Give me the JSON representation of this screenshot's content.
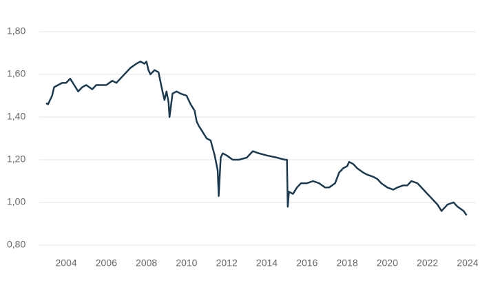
{
  "chart_data": {
    "type": "line",
    "x": [
      2003.0,
      2003.1,
      2003.3,
      2003.4,
      2003.6,
      2003.8,
      2004.0,
      2004.2,
      2004.4,
      2004.6,
      2004.8,
      2005.0,
      2005.3,
      2005.5,
      2005.8,
      2006.0,
      2006.3,
      2006.5,
      2006.7,
      2007.0,
      2007.2,
      2007.5,
      2007.7,
      2007.9,
      2008.0,
      2008.1,
      2008.2,
      2008.4,
      2008.6,
      2008.8,
      2008.9,
      2009.0,
      2009.1,
      2009.15,
      2009.3,
      2009.5,
      2009.7,
      2010.0,
      2010.2,
      2010.4,
      2010.5,
      2010.6,
      2010.8,
      2011.0,
      2011.2,
      2011.4,
      2011.55,
      2011.6,
      2011.65,
      2011.7,
      2011.8,
      2012.0,
      2012.3,
      2012.6,
      2013.0,
      2013.3,
      2013.6,
      2014.0,
      2014.5,
      2014.9,
      2015.0,
      2015.04,
      2015.1,
      2015.3,
      2015.5,
      2015.7,
      2016.0,
      2016.3,
      2016.6,
      2016.9,
      2017.1,
      2017.4,
      2017.6,
      2017.8,
      2018.0,
      2018.1,
      2018.3,
      2018.5,
      2018.8,
      2019.0,
      2019.3,
      2019.5,
      2019.7,
      2020.0,
      2020.3,
      2020.5,
      2020.8,
      2021.0,
      2021.2,
      2021.5,
      2021.8,
      2022.0,
      2022.2,
      2022.5,
      2022.7,
      2022.9,
      2023.0,
      2023.3,
      2023.5,
      2023.8,
      2023.95
    ],
    "series": [
      {
        "color": "#1b3a4f",
        "values": [
          1.465,
          1.46,
          1.5,
          1.54,
          1.55,
          1.56,
          1.56,
          1.58,
          1.55,
          1.52,
          1.54,
          1.55,
          1.53,
          1.55,
          1.55,
          1.55,
          1.57,
          1.56,
          1.58,
          1.61,
          1.63,
          1.65,
          1.66,
          1.65,
          1.66,
          1.62,
          1.6,
          1.62,
          1.61,
          1.52,
          1.48,
          1.52,
          1.47,
          1.4,
          1.51,
          1.52,
          1.51,
          1.5,
          1.46,
          1.43,
          1.38,
          1.36,
          1.33,
          1.3,
          1.29,
          1.22,
          1.15,
          1.03,
          1.12,
          1.21,
          1.23,
          1.22,
          1.2,
          1.2,
          1.21,
          1.24,
          1.23,
          1.22,
          1.21,
          1.2,
          1.2,
          0.98,
          1.05,
          1.04,
          1.07,
          1.09,
          1.09,
          1.1,
          1.09,
          1.07,
          1.07,
          1.09,
          1.14,
          1.16,
          1.17,
          1.19,
          1.18,
          1.16,
          1.14,
          1.13,
          1.12,
          1.11,
          1.09,
          1.07,
          1.06,
          1.07,
          1.08,
          1.08,
          1.1,
          1.09,
          1.06,
          1.04,
          1.02,
          0.99,
          0.96,
          0.98,
          0.99,
          1.0,
          0.98,
          0.96,
          0.94
        ]
      }
    ],
    "xlim": [
      2002.66,
      2024.38
    ],
    "xticks": [
      2004,
      2006,
      2008,
      2010,
      2012,
      2014,
      2016,
      2018,
      2020,
      2022,
      2024
    ],
    "ylim": [
      0.8,
      1.8
    ],
    "yticks": [
      {
        "value": 0.8,
        "label": "0,80"
      },
      {
        "value": 1.0,
        "label": "1,00"
      },
      {
        "value": 1.2,
        "label": "1,20"
      },
      {
        "value": 1.4,
        "label": "1,40"
      },
      {
        "value": 1.6,
        "label": "1,60"
      },
      {
        "value": 1.8,
        "label": "1,80"
      }
    ],
    "grid": true
  }
}
